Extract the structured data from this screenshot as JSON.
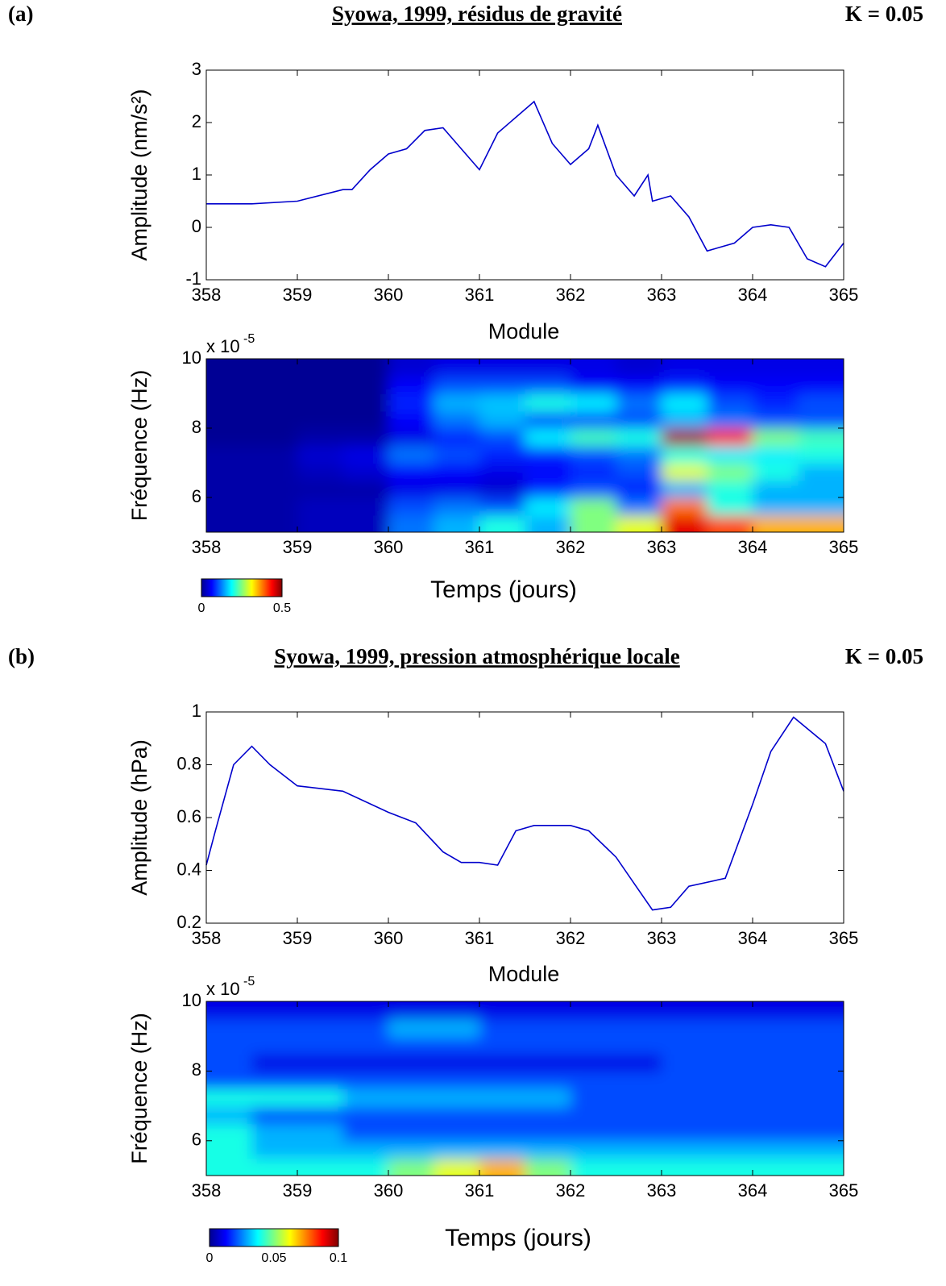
{
  "chart_data": [
    {
      "type": "line",
      "panel_label": "(a)",
      "title": "Syowa, 1999, résidus de gravité",
      "annotation": "K = 0.05",
      "ylabel": "Amplitude (nm/s²)",
      "color": "#0000cc",
      "x": [
        358,
        358.5,
        359,
        359.5,
        359.6,
        359.8,
        360,
        360.2,
        360.4,
        360.6,
        360.8,
        361,
        361.2,
        361.4,
        361.6,
        361.8,
        362,
        362.2,
        362.3,
        362.5,
        362.7,
        362.85,
        362.9,
        363.1,
        363.3,
        363.5,
        363.8,
        364,
        364.2,
        364.4,
        364.6,
        364.8,
        365
      ],
      "values": [
        0.45,
        0.45,
        0.5,
        0.72,
        0.72,
        1.1,
        1.4,
        1.5,
        1.85,
        1.9,
        1.5,
        1.1,
        1.8,
        2.1,
        2.4,
        1.6,
        1.2,
        1.5,
        1.95,
        1.0,
        0.6,
        1.0,
        0.5,
        0.6,
        0.2,
        -0.45,
        -0.3,
        0.0,
        0.05,
        0.0,
        -0.6,
        -0.75,
        -0.3
      ],
      "xlim": [
        358,
        365
      ],
      "xticks": [
        358,
        359,
        360,
        361,
        362,
        363,
        364,
        365
      ],
      "ylim": [
        -1,
        3
      ],
      "yticks": [
        -1,
        0,
        1,
        2,
        3
      ]
    },
    {
      "type": "heatmap",
      "title": "Module",
      "xlabel": "Temps (jours)",
      "ylabel": "Fréquence (Hz)",
      "exponent_base": "x 10",
      "exponent": "-5",
      "colormap": "jet",
      "xlim": [
        358,
        365
      ],
      "xticks": [
        358,
        359,
        360,
        361,
        362,
        363,
        364,
        365
      ],
      "ylim": [
        5,
        10
      ],
      "yticks": [
        6,
        8,
        10
      ],
      "zlim": [
        0,
        0.5
      ],
      "zticks": [
        0,
        0.5
      ],
      "z": [
        [
          0.02,
          0.02,
          0.03,
          0.03,
          0.12,
          0.15,
          0.2,
          0.15,
          0.25,
          0.3,
          0.45,
          0.4,
          0.35,
          0.35
        ],
        [
          0.02,
          0.02,
          0.03,
          0.03,
          0.1,
          0.12,
          0.1,
          0.18,
          0.25,
          0.12,
          0.38,
          0.2,
          0.15,
          0.15
        ],
        [
          0.02,
          0.02,
          0.02,
          0.02,
          0.05,
          0.05,
          0.04,
          0.08,
          0.1,
          0.08,
          0.15,
          0.2,
          0.15,
          0.15
        ],
        [
          0.02,
          0.02,
          0.03,
          0.04,
          0.06,
          0.06,
          0.05,
          0.06,
          0.08,
          0.1,
          0.3,
          0.25,
          0.2,
          0.15
        ],
        [
          0.02,
          0.02,
          0.04,
          0.05,
          0.12,
          0.1,
          0.08,
          0.08,
          0.1,
          0.12,
          0.2,
          0.18,
          0.18,
          0.2
        ],
        [
          0.01,
          0.01,
          0.02,
          0.02,
          0.05,
          0.08,
          0.1,
          0.18,
          0.22,
          0.2,
          0.48,
          0.42,
          0.25,
          0.22
        ],
        [
          0.01,
          0.01,
          0.01,
          0.01,
          0.06,
          0.12,
          0.15,
          0.1,
          0.1,
          0.1,
          0.15,
          0.12,
          0.1,
          0.1
        ],
        [
          0.01,
          0.01,
          0.01,
          0.01,
          0.08,
          0.15,
          0.16,
          0.2,
          0.18,
          0.12,
          0.18,
          0.1,
          0.08,
          0.1
        ],
        [
          0.01,
          0.01,
          0.01,
          0.01,
          0.06,
          0.1,
          0.1,
          0.1,
          0.06,
          0.06,
          0.08,
          0.06,
          0.06,
          0.06
        ],
        [
          0.01,
          0.01,
          0.01,
          0.01,
          0.04,
          0.05,
          0.05,
          0.05,
          0.05,
          0.04,
          0.05,
          0.05,
          0.05,
          0.05
        ]
      ]
    },
    {
      "type": "line",
      "panel_label": "(b)",
      "title": "Syowa, 1999, pression atmosphérique locale",
      "annotation": "K = 0.05",
      "ylabel": "Amplitude (hPa)",
      "color": "#0000cc",
      "x": [
        358,
        358.1,
        358.3,
        358.5,
        358.7,
        359,
        359.5,
        360,
        360.3,
        360.6,
        360.8,
        361,
        361.2,
        361.4,
        361.6,
        362,
        362.2,
        362.5,
        362.7,
        362.9,
        363.1,
        363.3,
        363.7,
        364,
        364.2,
        364.45,
        364.8,
        365
      ],
      "values": [
        0.42,
        0.55,
        0.8,
        0.87,
        0.8,
        0.72,
        0.7,
        0.62,
        0.58,
        0.47,
        0.43,
        0.43,
        0.42,
        0.55,
        0.57,
        0.57,
        0.55,
        0.45,
        0.35,
        0.25,
        0.26,
        0.34,
        0.37,
        0.65,
        0.85,
        0.98,
        0.88,
        0.7
      ],
      "xlim": [
        358,
        365
      ],
      "xticks": [
        358,
        359,
        360,
        361,
        362,
        363,
        364,
        365
      ],
      "ylim": [
        0.2,
        1
      ],
      "yticks": [
        0.2,
        0.4,
        0.6,
        0.8,
        1
      ]
    },
    {
      "type": "heatmap",
      "title": "Module",
      "xlabel": "Temps (jours)",
      "ylabel": "Fréquence (Hz)",
      "exponent_base": "x 10",
      "exponent": "-5",
      "colormap": "jet",
      "xlim": [
        358,
        365
      ],
      "xticks": [
        358,
        359,
        360,
        361,
        362,
        363,
        364,
        365
      ],
      "ylim": [
        5,
        10
      ],
      "yticks": [
        6,
        8,
        10
      ],
      "zlim": [
        0,
        0.1
      ],
      "zticks": [
        0,
        0.05,
        0.1
      ],
      "z": [
        [
          0.04,
          0.04,
          0.04,
          0.04,
          0.05,
          0.06,
          0.07,
          0.05,
          0.04,
          0.04,
          0.04,
          0.04,
          0.04,
          0.04
        ],
        [
          0.04,
          0.03,
          0.03,
          0.03,
          0.03,
          0.03,
          0.03,
          0.03,
          0.03,
          0.03,
          0.03,
          0.03,
          0.03,
          0.03
        ],
        [
          0.04,
          0.03,
          0.03,
          0.02,
          0.02,
          0.02,
          0.02,
          0.02,
          0.02,
          0.02,
          0.02,
          0.02,
          0.02,
          0.02
        ],
        [
          0.03,
          0.02,
          0.02,
          0.02,
          0.02,
          0.02,
          0.02,
          0.02,
          0.02,
          0.02,
          0.02,
          0.02,
          0.02,
          0.02
        ],
        [
          0.04,
          0.04,
          0.04,
          0.03,
          0.03,
          0.03,
          0.03,
          0.03,
          0.02,
          0.02,
          0.02,
          0.02,
          0.02,
          0.02
        ],
        [
          0.02,
          0.02,
          0.02,
          0.02,
          0.02,
          0.02,
          0.02,
          0.02,
          0.02,
          0.02,
          0.02,
          0.02,
          0.02,
          0.02
        ],
        [
          0.02,
          0.01,
          0.01,
          0.01,
          0.01,
          0.01,
          0.01,
          0.01,
          0.01,
          0.01,
          0.02,
          0.02,
          0.02,
          0.02
        ],
        [
          0.02,
          0.02,
          0.02,
          0.02,
          0.02,
          0.02,
          0.02,
          0.02,
          0.02,
          0.02,
          0.02,
          0.02,
          0.02,
          0.02
        ],
        [
          0.02,
          0.02,
          0.02,
          0.02,
          0.03,
          0.03,
          0.02,
          0.02,
          0.02,
          0.02,
          0.02,
          0.02,
          0.02,
          0.02
        ],
        [
          0.01,
          0.01,
          0.01,
          0.01,
          0.01,
          0.01,
          0.01,
          0.01,
          0.01,
          0.01,
          0.01,
          0.01,
          0.01,
          0.01
        ]
      ]
    }
  ]
}
